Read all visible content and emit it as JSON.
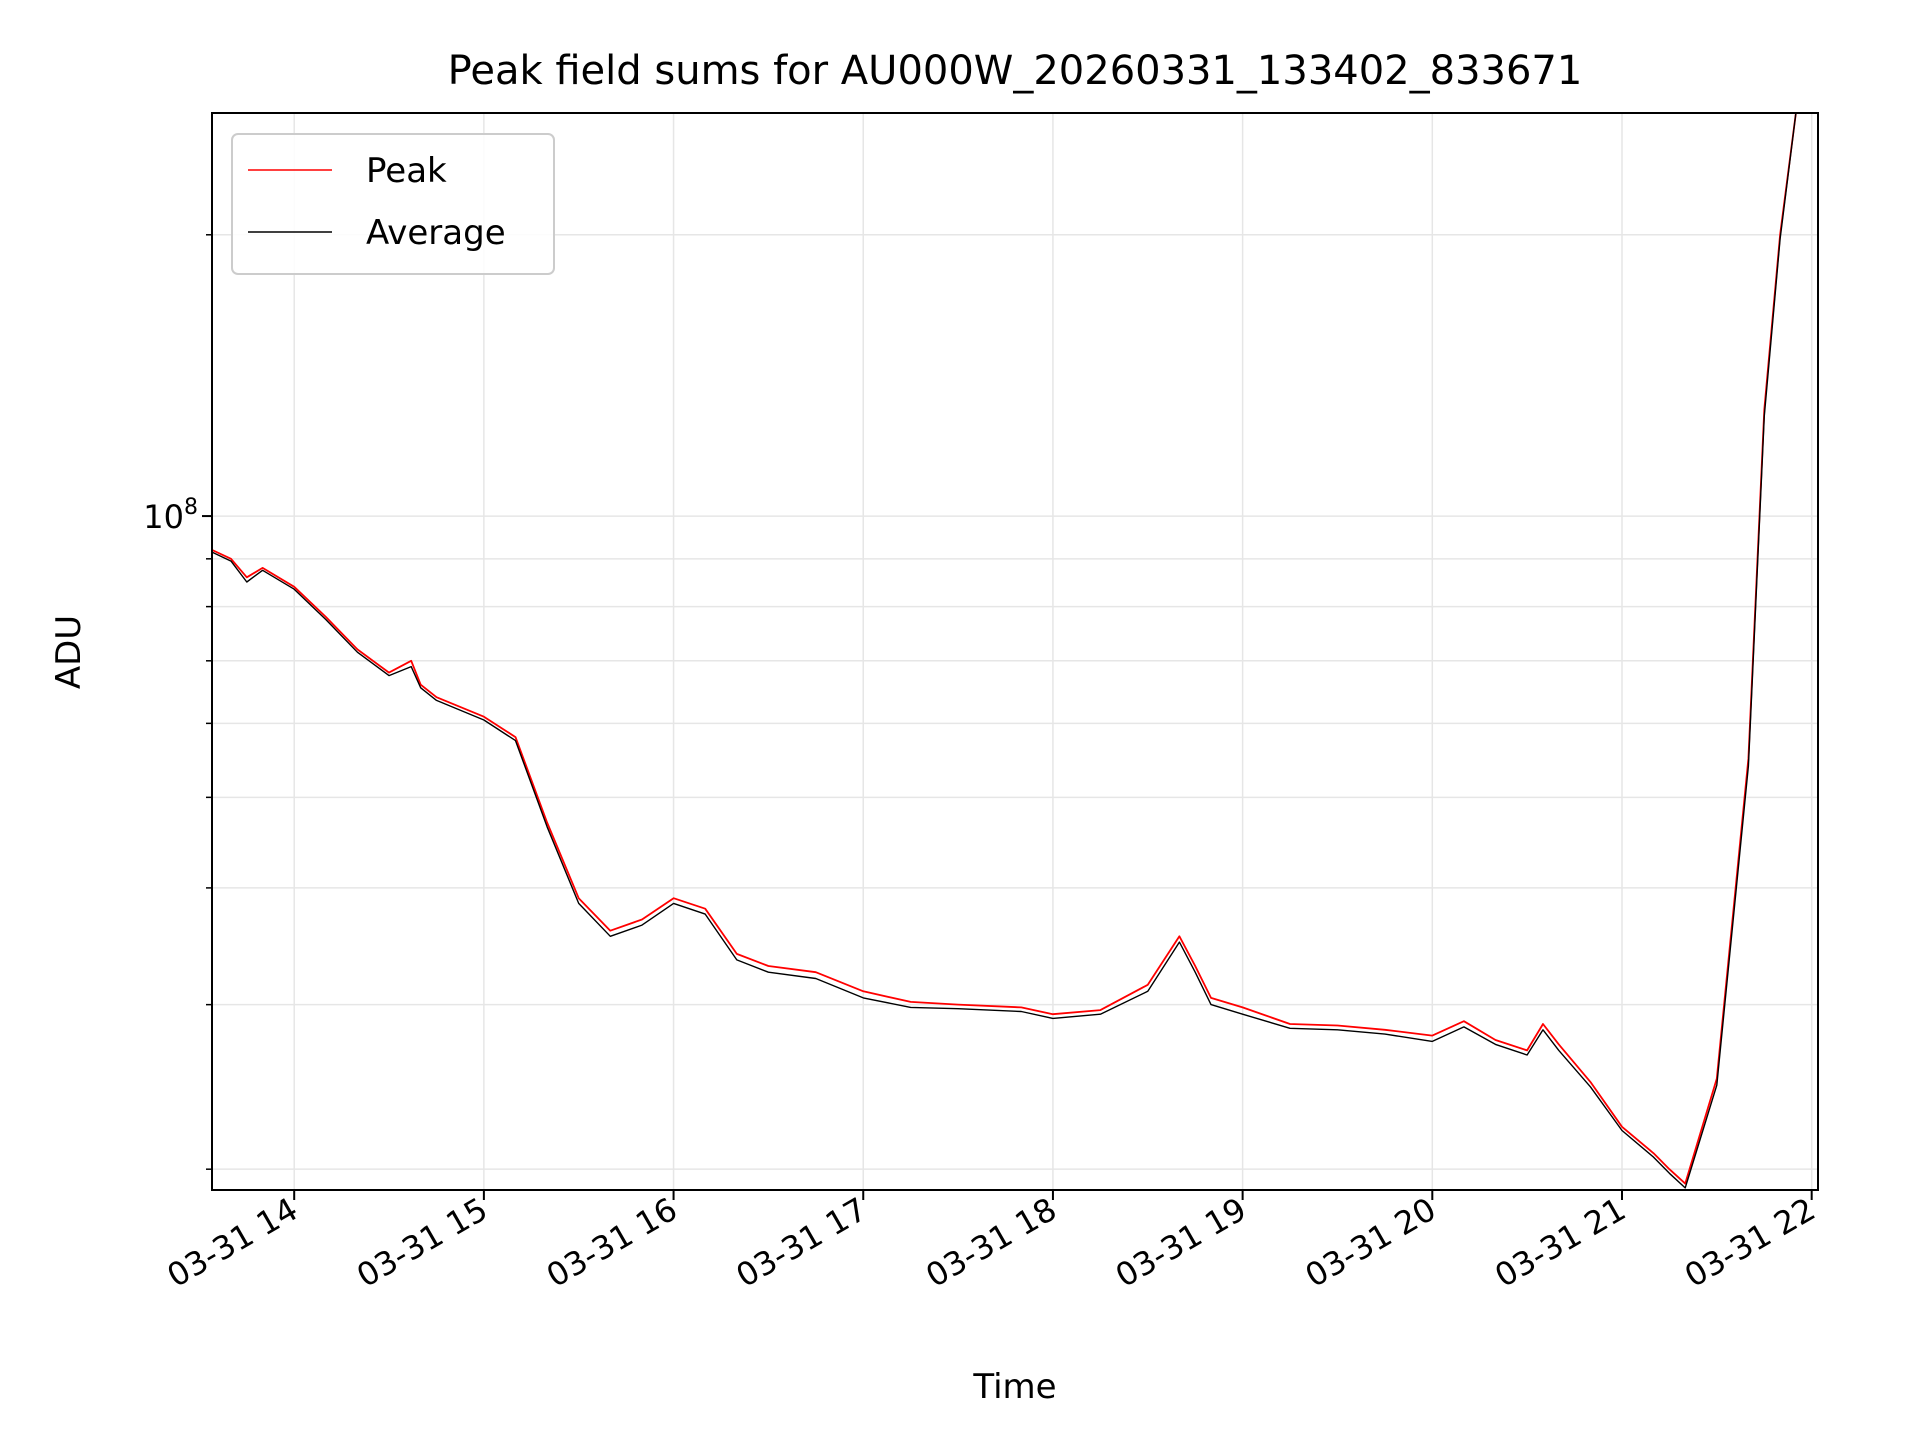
{
  "chart_data": {
    "type": "line",
    "title": "Peak field sums for AU000W_20260331_133402_833671",
    "xlabel": "Time",
    "ylabel": "ADU",
    "y_scale": "log",
    "ylim": [
      19000000,
      270000000
    ],
    "xlim": [
      "2026-03-31 13:34",
      "2026-03-31 22:02"
    ],
    "grid": true,
    "legend_position": "top-left",
    "x_tick_labels": [
      "03-31 14",
      "03-31 15",
      "03-31 16",
      "03-31 17",
      "03-31 18",
      "03-31 19",
      "03-31 20",
      "03-31 21",
      "03-31 22"
    ],
    "x_ticks": [
      "2026-03-31 14:00",
      "2026-03-31 15:00",
      "2026-03-31 16:00",
      "2026-03-31 17:00",
      "2026-03-31 18:00",
      "2026-03-31 19:00",
      "2026-03-31 20:00",
      "2026-03-31 21:00",
      "2026-03-31 22:00"
    ],
    "y_major_ticks": [
      {
        "value": 100000000,
        "base": "10",
        "exp": "8"
      }
    ],
    "y_minor_ticks": [
      20000000,
      30000000,
      40000000,
      50000000,
      60000000,
      70000000,
      80000000,
      90000000,
      200000000
    ],
    "series": [
      {
        "name": "Peak",
        "color": "#ff0000",
        "x": [
          "2026-03-31 13:34",
          "2026-03-31 13:40",
          "2026-03-31 13:45",
          "2026-03-31 13:50",
          "2026-03-31 14:00",
          "2026-03-31 14:10",
          "2026-03-31 14:20",
          "2026-03-31 14:30",
          "2026-03-31 14:37",
          "2026-03-31 14:40",
          "2026-03-31 14:45",
          "2026-03-31 15:00",
          "2026-03-31 15:10",
          "2026-03-31 15:20",
          "2026-03-31 15:30",
          "2026-03-31 15:40",
          "2026-03-31 15:50",
          "2026-03-31 16:00",
          "2026-03-31 16:10",
          "2026-03-31 16:20",
          "2026-03-31 16:30",
          "2026-03-31 16:45",
          "2026-03-31 17:00",
          "2026-03-31 17:15",
          "2026-03-31 17:30",
          "2026-03-31 17:50",
          "2026-03-31 18:00",
          "2026-03-31 18:15",
          "2026-03-31 18:30",
          "2026-03-31 18:40",
          "2026-03-31 18:45",
          "2026-03-31 18:50",
          "2026-03-31 19:00",
          "2026-03-31 19:15",
          "2026-03-31 19:30",
          "2026-03-31 19:45",
          "2026-03-31 20:00",
          "2026-03-31 20:10",
          "2026-03-31 20:20",
          "2026-03-31 20:30",
          "2026-03-31 20:35",
          "2026-03-31 20:40",
          "2026-03-31 20:50",
          "2026-03-31 21:00",
          "2026-03-31 21:10",
          "2026-03-31 21:15",
          "2026-03-31 21:20",
          "2026-03-31 21:30",
          "2026-03-31 21:40",
          "2026-03-31 21:45",
          "2026-03-31 21:50",
          "2026-03-31 21:55"
        ],
        "y": [
          92000000,
          90000000,
          86000000,
          88000000,
          84000000,
          78000000,
          72000000,
          68000000,
          70000000,
          66000000,
          64000000,
          61000000,
          58000000,
          47000000,
          39000000,
          36000000,
          37000000,
          39000000,
          38000000,
          34000000,
          33000000,
          32500000,
          31000000,
          30200000,
          30000000,
          29800000,
          29300000,
          29600000,
          31500000,
          35500000,
          33000000,
          30500000,
          29800000,
          28600000,
          28500000,
          28200000,
          27800000,
          28800000,
          27500000,
          26800000,
          28600000,
          27200000,
          24800000,
          22200000,
          20800000,
          20000000,
          19300000,
          25000000,
          55000000,
          130000000,
          200000000,
          270000000
        ]
      },
      {
        "name": "Average",
        "color": "#000000",
        "x": [
          "2026-03-31 13:34",
          "2026-03-31 13:40",
          "2026-03-31 13:45",
          "2026-03-31 13:50",
          "2026-03-31 14:00",
          "2026-03-31 14:10",
          "2026-03-31 14:20",
          "2026-03-31 14:30",
          "2026-03-31 14:37",
          "2026-03-31 14:40",
          "2026-03-31 14:45",
          "2026-03-31 15:00",
          "2026-03-31 15:10",
          "2026-03-31 15:20",
          "2026-03-31 15:30",
          "2026-03-31 15:40",
          "2026-03-31 15:50",
          "2026-03-31 16:00",
          "2026-03-31 16:10",
          "2026-03-31 16:20",
          "2026-03-31 16:30",
          "2026-03-31 16:45",
          "2026-03-31 17:00",
          "2026-03-31 17:15",
          "2026-03-31 17:30",
          "2026-03-31 17:50",
          "2026-03-31 18:00",
          "2026-03-31 18:15",
          "2026-03-31 18:30",
          "2026-03-31 18:40",
          "2026-03-31 18:45",
          "2026-03-31 18:50",
          "2026-03-31 19:00",
          "2026-03-31 19:15",
          "2026-03-31 19:30",
          "2026-03-31 19:45",
          "2026-03-31 20:00",
          "2026-03-31 20:10",
          "2026-03-31 20:20",
          "2026-03-31 20:30",
          "2026-03-31 20:35",
          "2026-03-31 20:40",
          "2026-03-31 20:50",
          "2026-03-31 21:00",
          "2026-03-31 21:10",
          "2026-03-31 21:15",
          "2026-03-31 21:20",
          "2026-03-31 21:30",
          "2026-03-31 21:40",
          "2026-03-31 21:45",
          "2026-03-31 21:50",
          "2026-03-31 21:55"
        ],
        "y": [
          91500000,
          89500000,
          85000000,
          87500000,
          83500000,
          77500000,
          71500000,
          67500000,
          69000000,
          65500000,
          63500000,
          60500000,
          57500000,
          46500000,
          38500000,
          35500000,
          36500000,
          38500000,
          37500000,
          33500000,
          32500000,
          32000000,
          30500000,
          29800000,
          29700000,
          29500000,
          29000000,
          29300000,
          31000000,
          35000000,
          32500000,
          30000000,
          29300000,
          28300000,
          28200000,
          27900000,
          27400000,
          28400000,
          27200000,
          26500000,
          28200000,
          26800000,
          24500000,
          22000000,
          20600000,
          19800000,
          19100000,
          24600000,
          54000000,
          128000000,
          198000000,
          270000000
        ]
      }
    ]
  }
}
